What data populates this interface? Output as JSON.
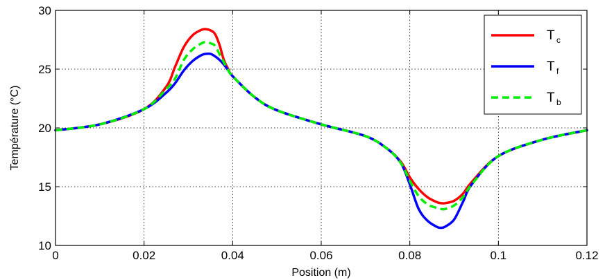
{
  "chart_data": {
    "type": "line",
    "xlabel": "Position (m)",
    "ylabel": "Température (°C)",
    "xlim": [
      0,
      0.12
    ],
    "ylim": [
      10,
      30
    ],
    "grid": true,
    "legend_position": "top-right",
    "xticks": [
      0,
      0.02,
      0.04,
      0.06,
      0.08,
      0.1,
      0.12
    ],
    "xtick_labels": [
      "0",
      "0.02",
      "0.04",
      "0.06",
      "0.08",
      "0.1",
      "0.12"
    ],
    "yticks": [
      10,
      15,
      20,
      25,
      30
    ],
    "ytick_labels": [
      "10",
      "15",
      "20",
      "25",
      "30"
    ],
    "x": [
      0,
      0.01,
      0.02,
      0.025,
      0.027,
      0.029,
      0.031,
      0.033,
      0.034,
      0.035,
      0.036,
      0.037,
      0.038,
      0.039,
      0.04,
      0.045,
      0.05,
      0.06,
      0.07,
      0.075,
      0.078,
      0.08,
      0.082,
      0.084,
      0.086,
      0.087,
      0.088,
      0.09,
      0.092,
      0.094,
      0.1,
      0.11,
      0.12
    ],
    "series": [
      {
        "name_main": "T",
        "name_sub": "c",
        "color": "#ff0000",
        "dash": "solid",
        "values": [
          19.8,
          20.3,
          21.6,
          23.5,
          25.2,
          26.9,
          27.9,
          28.35,
          28.4,
          28.3,
          28.0,
          27.1,
          25.8,
          25.0,
          24.4,
          22.6,
          21.5,
          20.3,
          19.3,
          18.2,
          17.1,
          15.8,
          14.8,
          14.1,
          13.7,
          13.6,
          13.6,
          13.8,
          14.4,
          15.4,
          17.6,
          19.0,
          19.8
        ]
      },
      {
        "name_main": "T",
        "name_sub": "f",
        "color": "#0000ff",
        "dash": "solid",
        "values": [
          19.8,
          20.3,
          21.6,
          23.0,
          23.8,
          24.9,
          25.7,
          26.2,
          26.3,
          26.3,
          26.1,
          25.8,
          25.4,
          24.9,
          24.4,
          22.6,
          21.5,
          20.3,
          19.3,
          18.2,
          17.0,
          15.2,
          13.1,
          12.1,
          11.6,
          11.5,
          11.6,
          12.2,
          13.7,
          15.2,
          17.6,
          19.0,
          19.8
        ]
      },
      {
        "name_main": "T",
        "name_sub": "b",
        "color": "#00ee00",
        "dash": "dashed",
        "values": [
          19.8,
          20.3,
          21.6,
          23.3,
          24.2,
          25.8,
          26.7,
          27.2,
          27.3,
          27.2,
          27.0,
          26.3,
          25.6,
          24.9,
          24.4,
          22.6,
          21.5,
          20.3,
          19.3,
          18.2,
          17.0,
          15.5,
          14.2,
          13.5,
          13.2,
          13.1,
          13.1,
          13.4,
          14.1,
          15.2,
          17.6,
          19.0,
          19.8
        ]
      }
    ]
  }
}
